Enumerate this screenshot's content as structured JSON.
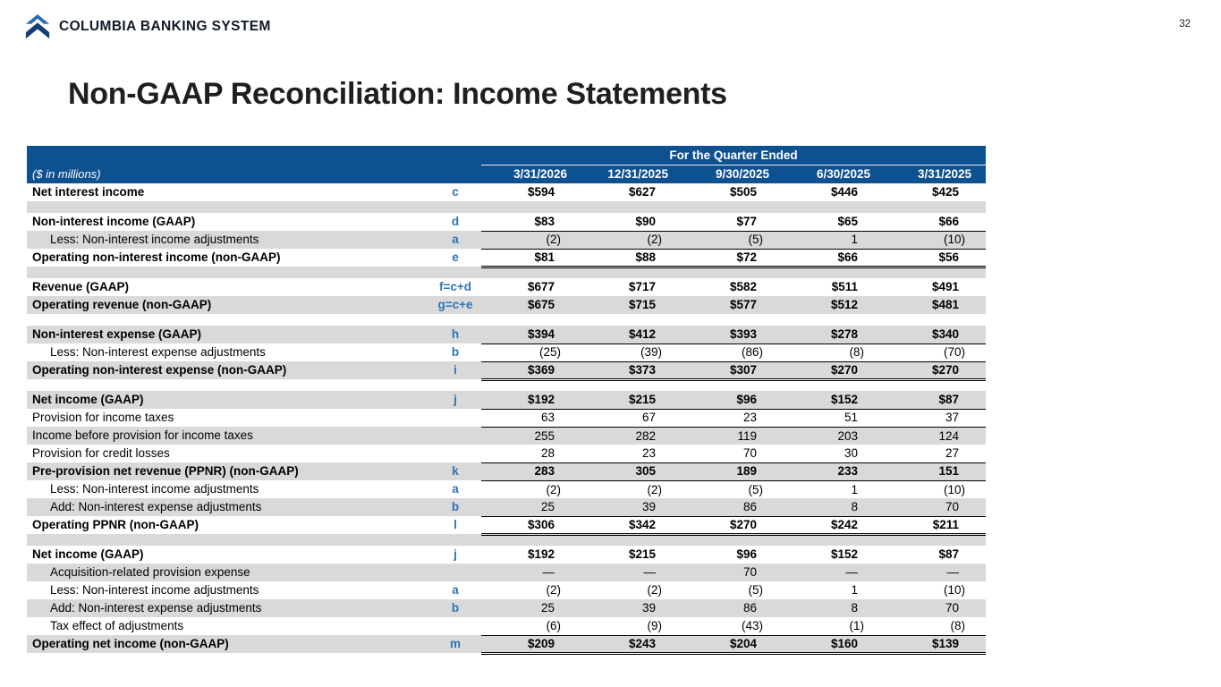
{
  "brand": {
    "name": "COLUMBIA BANKING SYSTEM",
    "page_number": "32"
  },
  "title": "Non-GAAP Reconciliation: Income Statements",
  "colors": {
    "header_bg": "#0E5191",
    "row_gray": "#D9D9D9",
    "ref_blue": "#2E74B5",
    "logo_blue": "#2B6CB3",
    "logo_blue_dark": "#123E73"
  },
  "table": {
    "header": {
      "group_label": "For the Quarter Ended",
      "units_label": "($ in millions)",
      "dates": [
        "3/31/2026",
        "12/31/2025",
        "9/30/2025",
        "6/30/2025",
        "3/31/2025"
      ]
    },
    "rows": [
      {
        "label": "Net interest income",
        "ref": "c",
        "values": [
          "$594",
          "$627",
          "$505",
          "$446",
          "$425"
        ],
        "bold": true,
        "bg": "white"
      },
      {
        "spacer": true,
        "bg": "gray"
      },
      {
        "label": "Non-interest income (GAAP)",
        "ref": "d",
        "values": [
          "$83",
          "$90",
          "$77",
          "$65",
          "$66"
        ],
        "bold": true,
        "bg": "white"
      },
      {
        "label": "Less: Non-interest income adjustments",
        "ref": "a",
        "values": [
          "(2)",
          "(2)",
          "(5)",
          "1",
          "(10)"
        ],
        "indent": true,
        "bg": "gray",
        "line_top": true
      },
      {
        "label": "Operating non-interest income (non-GAAP)",
        "ref": "e",
        "values": [
          "$81",
          "$88",
          "$72",
          "$66",
          "$56"
        ],
        "bold": true,
        "bg": "white",
        "line_top": true,
        "line_double_bottom": true
      },
      {
        "spacer": true,
        "bg": "gray"
      },
      {
        "label": "Revenue (GAAP)",
        "ref": "f=c+d",
        "values": [
          "$677",
          "$717",
          "$582",
          "$511",
          "$491"
        ],
        "bold": true,
        "bg": "white"
      },
      {
        "label": "Operating revenue (non-GAAP)",
        "ref": "g=c+e",
        "values": [
          "$675",
          "$715",
          "$577",
          "$512",
          "$481"
        ],
        "bold": true,
        "bg": "gray"
      },
      {
        "spacer": true,
        "bg": "white"
      },
      {
        "label": "Non-interest expense (GAAP)",
        "ref": "h",
        "values": [
          "$394",
          "$412",
          "$393",
          "$278",
          "$340"
        ],
        "bold": true,
        "bg": "gray"
      },
      {
        "label": "Less: Non-interest expense adjustments",
        "ref": "b",
        "values": [
          "(25)",
          "(39)",
          "(86)",
          "(8)",
          "(70)"
        ],
        "indent": true,
        "bg": "white",
        "line_top": true
      },
      {
        "label": "Operating non-interest expense (non-GAAP)",
        "ref": "i",
        "values": [
          "$369",
          "$373",
          "$307",
          "$270",
          "$270"
        ],
        "bold": true,
        "bg": "gray",
        "line_top": true,
        "line_double_bottom": true
      },
      {
        "spacer": true,
        "bg": "white"
      },
      {
        "label": "Net income (GAAP)",
        "ref": "j",
        "values": [
          "$192",
          "$215",
          "$96",
          "$152",
          "$87"
        ],
        "bold": true,
        "bg": "gray"
      },
      {
        "label": "Provision for income taxes",
        "ref": "",
        "values": [
          "63",
          "67",
          "23",
          "51",
          "37"
        ],
        "bg": "white",
        "line_top": true
      },
      {
        "label": "Income before provision for income taxes",
        "ref": "",
        "values": [
          "255",
          "282",
          "119",
          "203",
          "124"
        ],
        "bg": "gray",
        "line_top": true
      },
      {
        "label": "Provision for credit losses",
        "ref": "",
        "values": [
          "28",
          "23",
          "70",
          "30",
          "27"
        ],
        "bg": "white"
      },
      {
        "label": "Pre-provision net revenue (PPNR) (non-GAAP)",
        "ref": "k",
        "values": [
          "283",
          "305",
          "189",
          "233",
          "151"
        ],
        "bold": true,
        "bg": "gray",
        "line_top": true
      },
      {
        "label": "Less: Non-interest income adjustments",
        "ref": "a",
        "values": [
          "(2)",
          "(2)",
          "(5)",
          "1",
          "(10)"
        ],
        "indent": true,
        "bg": "white",
        "line_top": true
      },
      {
        "label": "Add: Non-interest expense adjustments",
        "ref": "b",
        "values": [
          "25",
          "39",
          "86",
          "8",
          "70"
        ],
        "indent": true,
        "bg": "gray"
      },
      {
        "label": "Operating PPNR (non-GAAP)",
        "ref": "l",
        "values": [
          "$306",
          "$342",
          "$270",
          "$242",
          "$211"
        ],
        "bold": true,
        "bg": "white",
        "line_top": true,
        "line_double_bottom": true
      },
      {
        "spacer": true,
        "bg": "gray"
      },
      {
        "label": "Net income (GAAP)",
        "ref": "j",
        "values": [
          "$192",
          "$215",
          "$96",
          "$152",
          "$87"
        ],
        "bold": true,
        "bg": "white"
      },
      {
        "label": "Acquisition-related provision expense",
        "ref": "",
        "values": [
          "—",
          "—",
          "70",
          "—",
          "—"
        ],
        "indent": true,
        "bg": "gray"
      },
      {
        "label": "Less: Non-interest income adjustments",
        "ref": "a",
        "values": [
          "(2)",
          "(2)",
          "(5)",
          "1",
          "(10)"
        ],
        "indent": true,
        "bg": "white"
      },
      {
        "label": "Add: Non-interest expense adjustments",
        "ref": "b",
        "values": [
          "25",
          "39",
          "86",
          "8",
          "70"
        ],
        "indent": true,
        "bg": "gray"
      },
      {
        "label": "Tax effect of adjustments",
        "ref": "",
        "values": [
          "(6)",
          "(9)",
          "(43)",
          "(1)",
          "(8)"
        ],
        "indent": true,
        "bg": "white"
      },
      {
        "label": "Operating net income (non-GAAP)",
        "ref": "m",
        "values": [
          "$209",
          "$243",
          "$204",
          "$160",
          "$139"
        ],
        "bold": true,
        "bg": "gray",
        "line_top": true,
        "line_double_bottom": true
      }
    ]
  }
}
